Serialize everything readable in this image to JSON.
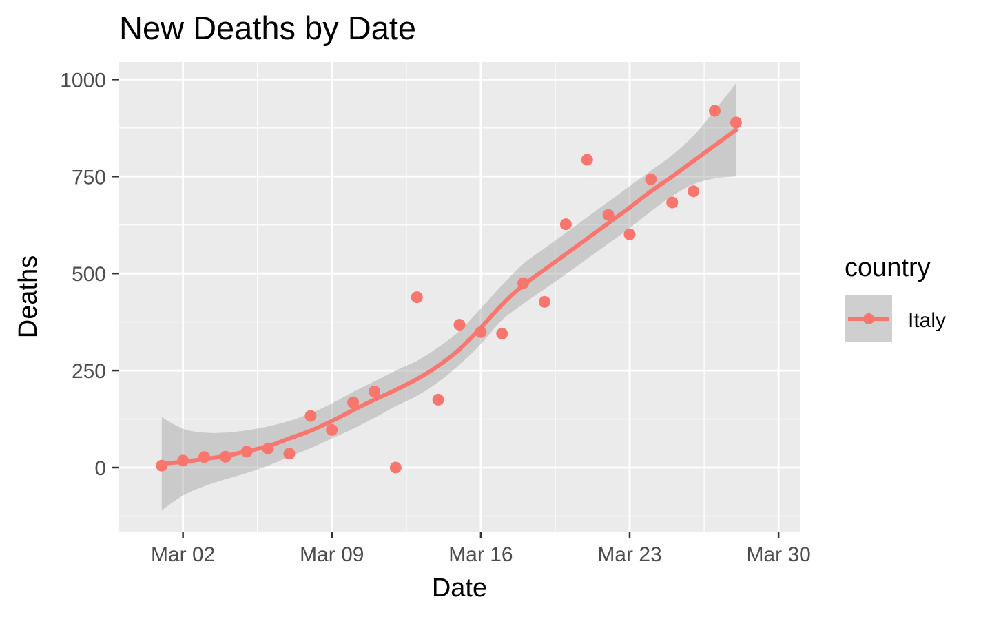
{
  "chart_data": {
    "type": "scatter",
    "title": "New Deaths by Date",
    "xlabel": "Date",
    "ylabel": "Deaths",
    "x_ticks": [
      {
        "date": "2020-03-02",
        "label": "Mar 02"
      },
      {
        "date": "2020-03-09",
        "label": "Mar 09"
      },
      {
        "date": "2020-03-16",
        "label": "Mar 16"
      },
      {
        "date": "2020-03-23",
        "label": "Mar 23"
      },
      {
        "date": "2020-03-30",
        "label": "Mar 30"
      }
    ],
    "y_ticks": [
      0,
      250,
      500,
      750,
      1000
    ],
    "y_tick_labels": [
      "0",
      "250",
      "500",
      "750",
      "1000"
    ],
    "xlim": [
      "2020-02-28",
      "2020-03-31"
    ],
    "ylim": [
      -165,
      1045
    ],
    "grid": true,
    "legend": {
      "title": "country",
      "position": "right"
    },
    "series": [
      {
        "name": "Italy",
        "color": "#F8766D",
        "points": [
          {
            "x": "2020-03-01",
            "y": 5
          },
          {
            "x": "2020-03-02",
            "y": 18
          },
          {
            "x": "2020-03-03",
            "y": 27
          },
          {
            "x": "2020-03-04",
            "y": 28
          },
          {
            "x": "2020-03-05",
            "y": 41
          },
          {
            "x": "2020-03-06",
            "y": 49
          },
          {
            "x": "2020-03-07",
            "y": 36
          },
          {
            "x": "2020-03-08",
            "y": 133
          },
          {
            "x": "2020-03-09",
            "y": 97
          },
          {
            "x": "2020-03-10",
            "y": 168
          },
          {
            "x": "2020-03-11",
            "y": 196
          },
          {
            "x": "2020-03-12",
            "y": 0
          },
          {
            "x": "2020-03-13",
            "y": 439
          },
          {
            "x": "2020-03-14",
            "y": 175
          },
          {
            "x": "2020-03-15",
            "y": 368
          },
          {
            "x": "2020-03-16",
            "y": 349
          },
          {
            "x": "2020-03-17",
            "y": 345
          },
          {
            "x": "2020-03-18",
            "y": 475
          },
          {
            "x": "2020-03-19",
            "y": 427
          },
          {
            "x": "2020-03-20",
            "y": 627
          },
          {
            "x": "2020-03-21",
            "y": 793
          },
          {
            "x": "2020-03-22",
            "y": 651
          },
          {
            "x": "2020-03-23",
            "y": 601
          },
          {
            "x": "2020-03-24",
            "y": 743
          },
          {
            "x": "2020-03-25",
            "y": 683
          },
          {
            "x": "2020-03-26",
            "y": 712
          },
          {
            "x": "2020-03-27",
            "y": 919
          },
          {
            "x": "2020-03-28",
            "y": 889
          }
        ],
        "smooth": {
          "x": [
            "2020-03-01",
            "2020-03-02",
            "2020-03-03",
            "2020-03-04",
            "2020-03-05",
            "2020-03-06",
            "2020-03-07",
            "2020-03-08",
            "2020-03-09",
            "2020-03-10",
            "2020-03-11",
            "2020-03-12",
            "2020-03-13",
            "2020-03-14",
            "2020-03-15",
            "2020-03-16",
            "2020-03-17",
            "2020-03-18",
            "2020-03-19",
            "2020-03-20",
            "2020-03-21",
            "2020-03-22",
            "2020-03-23",
            "2020-03-24",
            "2020-03-25",
            "2020-03-26",
            "2020-03-27",
            "2020-03-28"
          ],
          "fit": [
            10,
            15,
            22,
            30,
            42,
            55,
            75,
            95,
            120,
            148,
            175,
            200,
            228,
            262,
            305,
            360,
            420,
            470,
            510,
            550,
            590,
            630,
            670,
            712,
            750,
            790,
            830,
            870
          ],
          "lower": [
            -110,
            -72,
            -48,
            -30,
            -14,
            5,
            28,
            50,
            75,
            100,
            128,
            158,
            185,
            220,
            265,
            318,
            380,
            422,
            460,
            498,
            538,
            577,
            617,
            660,
            700,
            730,
            745,
            750
          ],
          "upper": [
            130,
            100,
            90,
            90,
            96,
            106,
            120,
            140,
            165,
            195,
            222,
            250,
            275,
            310,
            352,
            410,
            470,
            525,
            565,
            605,
            645,
            685,
            725,
            765,
            805,
            855,
            920,
            990
          ]
        }
      }
    ]
  }
}
